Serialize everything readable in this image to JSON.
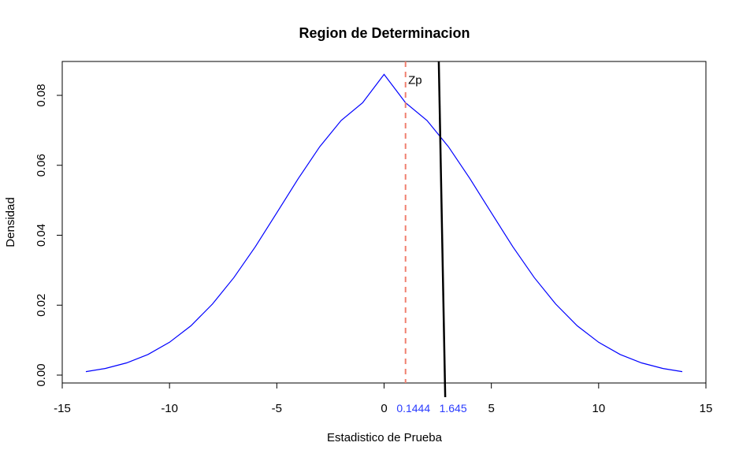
{
  "chart_data": {
    "type": "line",
    "title": "Region de Determinacion",
    "xlabel": "Estadistico de Prueba",
    "ylabel": "Densidad",
    "xlim": [
      -15,
      15
    ],
    "ylim": [
      0,
      0.09
    ],
    "x_ticks": [
      -15,
      -10,
      -5,
      0,
      5,
      10,
      15
    ],
    "y_ticks": [
      0.0,
      0.02,
      0.04,
      0.06,
      0.08
    ],
    "x_tick_labels": [
      "-15",
      "-10",
      "-5",
      "0",
      "5",
      "10",
      "15"
    ],
    "y_tick_labels": [
      "0.00",
      "0.02",
      "0.04",
      "0.06",
      "0.08"
    ],
    "grid": false,
    "series": [
      {
        "color": "#0000ff",
        "x": [
          -13.9,
          -13,
          -12,
          -11,
          -10,
          -9,
          -8,
          -7,
          -6,
          -5,
          -4,
          -3,
          -2,
          -1,
          0,
          1,
          2,
          3,
          4,
          5,
          6,
          7,
          8,
          9,
          10,
          11,
          12,
          13,
          13.9
        ],
        "y": [
          0.001,
          0.0019,
          0.0035,
          0.0059,
          0.0094,
          0.0141,
          0.0203,
          0.0279,
          0.0367,
          0.0464,
          0.0562,
          0.0653,
          0.0728,
          0.0779,
          0.086,
          0.0779,
          0.0728,
          0.0653,
          0.0562,
          0.0464,
          0.0367,
          0.0279,
          0.0203,
          0.0141,
          0.0094,
          0.0059,
          0.0035,
          0.0019,
          0.001
        ]
      }
    ],
    "reference_lines": [
      {
        "label": "0.1444",
        "x": 1.0,
        "style": "dashed",
        "color": "#f08070"
      },
      {
        "label": "1.645",
        "x_top": 2.55,
        "x_bottom": 2.85,
        "style": "solid",
        "color": "#000000"
      }
    ],
    "annotations": [
      {
        "text": "Zp",
        "x": 1.05,
        "y": 0.0855
      }
    ],
    "colors": {
      "curve": "#0000ff",
      "dashed_line": "#f08070",
      "critical_line": "#000000",
      "marker_labels": "#2a3cff"
    }
  }
}
